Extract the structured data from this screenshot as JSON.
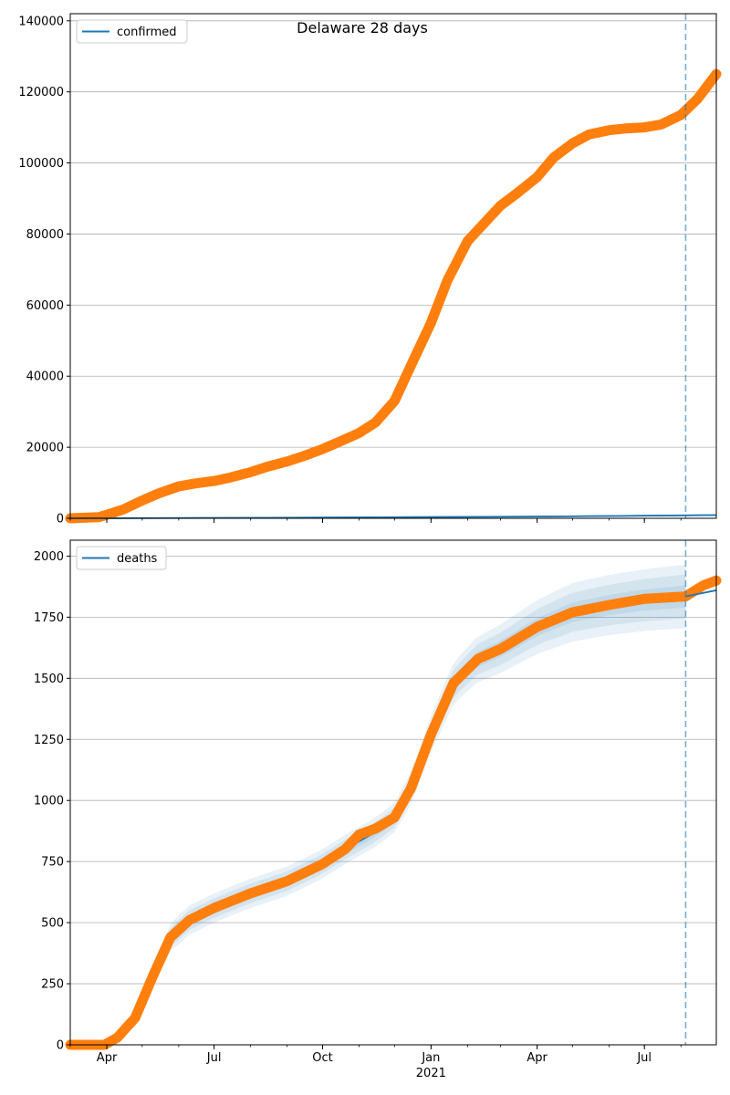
{
  "chart_data": [
    {
      "type": "line",
      "title": "Delaware 28 days",
      "xlabel": "",
      "ylabel": "",
      "x_range": [
        "2020-03-01",
        "2021-08-31"
      ],
      "ylim": [
        0,
        142000
      ],
      "y_ticks": [
        0,
        20000,
        40000,
        60000,
        80000,
        100000,
        120000,
        140000
      ],
      "x_ticks": [
        {
          "date": "2020-04-01",
          "label": "Apr"
        },
        {
          "date": "2020-07-01",
          "label": "Jul"
        },
        {
          "date": "2020-10-01",
          "label": "Oct"
        },
        {
          "date": "2021-01-01",
          "label": "Jan"
        },
        {
          "date": "2021-04-01",
          "label": "Apr"
        },
        {
          "date": "2021-07-01",
          "label": "Jul"
        }
      ],
      "grid": true,
      "legend_position": "top-left",
      "forecast_date": "2021-08-05",
      "series": [
        {
          "name": "confirmed",
          "role": "model",
          "color": "#1f77b4",
          "points": [
            [
              "2020-03-01",
              0
            ],
            [
              "2020-07-01",
              100
            ],
            [
              "2020-10-01",
              200
            ],
            [
              "2021-01-01",
              350
            ],
            [
              "2021-04-01",
              500
            ],
            [
              "2021-08-31",
              900
            ]
          ]
        },
        {
          "name": "",
          "role": "observed",
          "color": "#ff7f0e",
          "points": [
            [
              "2020-03-01",
              0
            ],
            [
              "2020-03-25",
              300
            ],
            [
              "2020-04-01",
              1000
            ],
            [
              "2020-04-15",
              2500
            ],
            [
              "2020-05-01",
              5000
            ],
            [
              "2020-05-15",
              7000
            ],
            [
              "2020-06-01",
              9000
            ],
            [
              "2020-06-15",
              9800
            ],
            [
              "2020-07-01",
              10500
            ],
            [
              "2020-07-15",
              11500
            ],
            [
              "2020-08-01",
              13000
            ],
            [
              "2020-08-15",
              14500
            ],
            [
              "2020-09-01",
              16000
            ],
            [
              "2020-09-15",
              17500
            ],
            [
              "2020-10-01",
              19500
            ],
            [
              "2020-10-15",
              21500
            ],
            [
              "2020-11-01",
              24000
            ],
            [
              "2020-11-15",
              27000
            ],
            [
              "2020-12-01",
              33000
            ],
            [
              "2020-12-15",
              43000
            ],
            [
              "2021-01-01",
              55000
            ],
            [
              "2021-01-15",
              67000
            ],
            [
              "2021-02-01",
              78000
            ],
            [
              "2021-02-15",
              83000
            ],
            [
              "2021-03-01",
              88000
            ],
            [
              "2021-03-15",
              91500
            ],
            [
              "2021-04-01",
              96000
            ],
            [
              "2021-04-15",
              101500
            ],
            [
              "2021-05-01",
              105500
            ],
            [
              "2021-05-15",
              108000
            ],
            [
              "2021-06-01",
              109200
            ],
            [
              "2021-06-15",
              109700
            ],
            [
              "2021-07-01",
              110000
            ],
            [
              "2021-07-15",
              110800
            ],
            [
              "2021-08-01",
              113500
            ],
            [
              "2021-08-15",
              118000
            ],
            [
              "2021-08-31",
              125000
            ]
          ]
        }
      ]
    },
    {
      "type": "line",
      "title": "",
      "xlabel": "2021",
      "ylabel": "",
      "x_range": [
        "2020-03-01",
        "2021-08-31"
      ],
      "ylim": [
        0,
        2065
      ],
      "y_ticks": [
        0,
        250,
        500,
        750,
        1000,
        1250,
        1500,
        1750,
        2000
      ],
      "x_ticks": [
        {
          "date": "2020-04-01",
          "label": "Apr"
        },
        {
          "date": "2020-07-01",
          "label": "Jul"
        },
        {
          "date": "2020-10-01",
          "label": "Oct"
        },
        {
          "date": "2021-01-01",
          "label": "Jan"
        },
        {
          "date": "2021-04-01",
          "label": "Apr"
        },
        {
          "date": "2021-07-01",
          "label": "Jul"
        }
      ],
      "grid": true,
      "legend_position": "top-left",
      "forecast_date": "2021-08-05",
      "band_color": "#1f77b4",
      "bands": [
        {
          "opacity": 0.1,
          "lower_offset": [
            0,
            60,
            60,
            60,
            90,
            120,
            130
          ],
          "upper_offset": [
            0,
            60,
            60,
            60,
            90,
            120,
            130
          ]
        },
        {
          "opacity": 0.1,
          "lower_offset": [
            0,
            40,
            40,
            40,
            60,
            80,
            90
          ],
          "upper_offset": [
            0,
            40,
            40,
            40,
            60,
            80,
            90
          ]
        },
        {
          "opacity": 0.1,
          "lower_offset": [
            0,
            20,
            20,
            20,
            30,
            40,
            45
          ],
          "upper_offset": [
            0,
            20,
            20,
            20,
            30,
            40,
            45
          ]
        }
      ],
      "band_anchor_dates": [
        "2020-04-01",
        "2020-06-01",
        "2020-09-01",
        "2020-12-01",
        "2021-02-01",
        "2021-05-01",
        "2021-08-05"
      ],
      "series": [
        {
          "name": "deaths",
          "role": "model",
          "color": "#1f77b4",
          "points": [
            [
              "2020-03-01",
              0
            ],
            [
              "2020-03-30",
              0
            ],
            [
              "2020-04-10",
              30
            ],
            [
              "2020-04-25",
              110
            ],
            [
              "2020-05-10",
              280
            ],
            [
              "2020-05-25",
              440
            ],
            [
              "2020-06-10",
              510
            ],
            [
              "2020-07-01",
              560
            ],
            [
              "2020-08-01",
              620
            ],
            [
              "2020-09-01",
              670
            ],
            [
              "2020-10-01",
              740
            ],
            [
              "2020-10-20",
              800
            ],
            [
              "2020-11-15",
              870
            ],
            [
              "2020-12-01",
              930
            ],
            [
              "2020-12-15",
              1050
            ],
            [
              "2021-01-01",
              1270
            ],
            [
              "2021-01-20",
              1480
            ],
            [
              "2021-02-10",
              1580
            ],
            [
              "2021-03-01",
              1620
            ],
            [
              "2021-04-01",
              1710
            ],
            [
              "2021-05-01",
              1770
            ],
            [
              "2021-06-01",
              1800
            ],
            [
              "2021-07-01",
              1820
            ],
            [
              "2021-08-05",
              1835
            ],
            [
              "2021-08-31",
              1860
            ]
          ]
        },
        {
          "name": "",
          "role": "observed",
          "color": "#ff7f0e",
          "points": [
            [
              "2020-03-01",
              0
            ],
            [
              "2020-03-30",
              0
            ],
            [
              "2020-04-10",
              30
            ],
            [
              "2020-04-25",
              110
            ],
            [
              "2020-05-10",
              280
            ],
            [
              "2020-05-25",
              440
            ],
            [
              "2020-06-10",
              510
            ],
            [
              "2020-07-01",
              560
            ],
            [
              "2020-08-01",
              620
            ],
            [
              "2020-09-01",
              670
            ],
            [
              "2020-10-01",
              740
            ],
            [
              "2020-10-20",
              800
            ],
            [
              "2020-11-01",
              860
            ],
            [
              "2020-11-15",
              885
            ],
            [
              "2020-12-01",
              930
            ],
            [
              "2020-12-15",
              1050
            ],
            [
              "2021-01-01",
              1270
            ],
            [
              "2021-01-20",
              1480
            ],
            [
              "2021-02-10",
              1580
            ],
            [
              "2021-03-01",
              1620
            ],
            [
              "2021-04-01",
              1710
            ],
            [
              "2021-05-01",
              1770
            ],
            [
              "2021-06-01",
              1800
            ],
            [
              "2021-07-01",
              1825
            ],
            [
              "2021-08-05",
              1835
            ],
            [
              "2021-08-20",
              1880
            ],
            [
              "2021-08-31",
              1900
            ]
          ]
        }
      ]
    }
  ]
}
